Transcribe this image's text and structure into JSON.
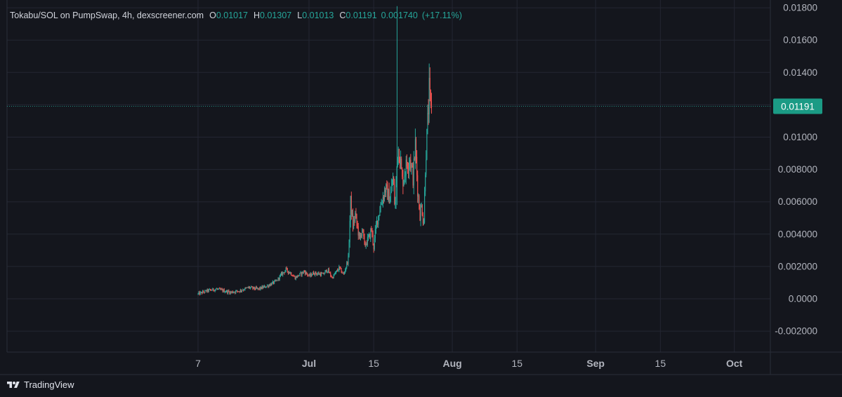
{
  "legend": {
    "symbol": "Tokabu/SOL on PumpSwap, 4h, dexscreener.com",
    "open_label": "O",
    "open": "0.01017",
    "high_label": "H",
    "high": "0.01307",
    "low_label": "L",
    "low": "0.01013",
    "close_label": "C",
    "close": "0.01191",
    "change": "0.001740",
    "change_pct": "(+17.11%)"
  },
  "footer": {
    "brand": "TradingView"
  },
  "colors": {
    "background": "#14161d",
    "grid": "#232632",
    "up": "#26a69a",
    "down": "#ef5350",
    "price_label_bg": "#1b9b85",
    "text": "#d1d4dc"
  },
  "chart_data": {
    "type": "candlestick",
    "interval": "4h",
    "current_price": 0.01191,
    "current_price_label": "0.01191",
    "y_ticks": [
      {
        "value": 0.018,
        "label": "0.01800"
      },
      {
        "value": 0.016,
        "label": "0.01600"
      },
      {
        "value": 0.014,
        "label": "0.01400"
      },
      {
        "value": 0.01,
        "label": "0.01000"
      },
      {
        "value": 0.008,
        "label": "0.008000"
      },
      {
        "value": 0.006,
        "label": "0.006000"
      },
      {
        "value": 0.004,
        "label": "0.004000"
      },
      {
        "value": 0.002,
        "label": "0.002000"
      },
      {
        "value": 0.0,
        "label": "0.0000"
      },
      {
        "value": -0.002,
        "label": "-0.002000"
      }
    ],
    "x_ticks": [
      {
        "label": "7",
        "day": 7,
        "bold": false
      },
      {
        "label": "Jul",
        "day": 31,
        "bold": true
      },
      {
        "label": "15",
        "day": 45,
        "bold": false
      },
      {
        "label": "Aug",
        "day": 62,
        "bold": true
      },
      {
        "label": "15",
        "day": 76,
        "bold": false
      },
      {
        "label": "Sep",
        "day": 93,
        "bold": true
      },
      {
        "label": "15",
        "day": 107,
        "bold": false
      },
      {
        "label": "Oct",
        "day": 123,
        "bold": true
      }
    ],
    "candle_start_day": 7,
    "candle_end_day": 57.5,
    "anchors": [
      [
        7,
        0.0003
      ],
      [
        9,
        0.0005
      ],
      [
        11,
        0.0006
      ],
      [
        14,
        0.0004
      ],
      [
        16,
        0.0005
      ],
      [
        18,
        0.0007
      ],
      [
        20,
        0.0006
      ],
      [
        22,
        0.0008
      ],
      [
        24,
        0.0011
      ],
      [
        25,
        0.0015
      ],
      [
        26,
        0.0018
      ],
      [
        27,
        0.0016
      ],
      [
        28,
        0.0013
      ],
      [
        30,
        0.0017
      ],
      [
        31,
        0.0014
      ],
      [
        32,
        0.0016
      ],
      [
        34,
        0.0015
      ],
      [
        35,
        0.0018
      ],
      [
        36,
        0.0013
      ],
      [
        37.5,
        0.0019
      ],
      [
        38.5,
        0.0015
      ],
      [
        39.5,
        0.0025
      ],
      [
        40,
        0.006
      ],
      [
        40.5,
        0.0045
      ],
      [
        41,
        0.0052
      ],
      [
        42,
        0.0036
      ],
      [
        42.5,
        0.0044
      ],
      [
        43,
        0.0033
      ],
      [
        44,
        0.0038
      ],
      [
        44.5,
        0.0043
      ],
      [
        45,
        0.0032
      ],
      [
        45.5,
        0.0045
      ],
      [
        46.5,
        0.0058
      ],
      [
        47.5,
        0.0068
      ],
      [
        48.5,
        0.0062
      ],
      [
        49.2,
        0.0075
      ],
      [
        49.6,
        0.0055
      ],
      [
        50.2,
        0.0095
      ],
      [
        50.7,
        0.0088
      ],
      [
        51.2,
        0.0072
      ],
      [
        52,
        0.0082
      ],
      [
        52.8,
        0.0088
      ],
      [
        53.5,
        0.0075
      ],
      [
        54,
        0.0095
      ],
      [
        54.5,
        0.0068
      ],
      [
        55,
        0.0052
      ],
      [
        55.4,
        0.0058
      ],
      [
        55.8,
        0.0045
      ],
      [
        56.2,
        0.0085
      ],
      [
        56.6,
        0.0105
      ],
      [
        57,
        0.0128
      ],
      [
        57.3,
        0.0117
      ],
      [
        57.5,
        0.01191
      ]
    ],
    "spike": {
      "day": 50.05,
      "high": 0.0181,
      "low": 0.0058
    }
  }
}
